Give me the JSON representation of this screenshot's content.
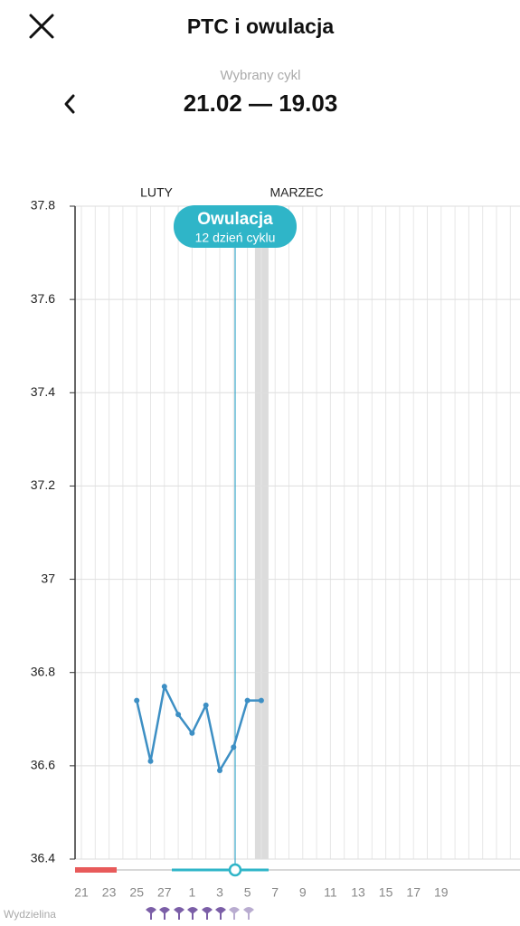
{
  "header": {
    "title": "PTC i owulacja",
    "cycle_caption": "Wybrany cykl",
    "cycle_range": "21.02 — 19.03"
  },
  "chart_data": {
    "type": "line",
    "month_labels": [
      "LUTY",
      "MARZEC"
    ],
    "categories": [
      "21",
      null,
      "23",
      null,
      "25",
      null,
      "27",
      null,
      "1",
      null,
      "3",
      null,
      "5",
      null,
      "7",
      null,
      "9",
      null,
      "11",
      null,
      "13",
      null,
      "15",
      null,
      "17",
      null,
      "19",
      null,
      null,
      null,
      null,
      null
    ],
    "series": [
      {
        "name": "PTC",
        "color": "#3d8fc4",
        "values": [
          null,
          null,
          null,
          null,
          36.74,
          36.61,
          36.77,
          36.71,
          36.67,
          36.73,
          36.59,
          36.64,
          36.74,
          36.74,
          null,
          null,
          null,
          null,
          null,
          null,
          null,
          null,
          null,
          null,
          null,
          null,
          null,
          null,
          null,
          null,
          null,
          null
        ]
      }
    ],
    "ylim": [
      36.4,
      37.8
    ],
    "yticks": [
      36.4,
      36.6,
      36.8,
      37,
      37.2,
      37.4,
      37.6,
      37.8
    ],
    "grid": true,
    "annotations": {
      "ovulation_title": "Owulacja",
      "ovulation_day": "12 dzień cyklu",
      "discharge_label": "Wydzielina"
    }
  }
}
